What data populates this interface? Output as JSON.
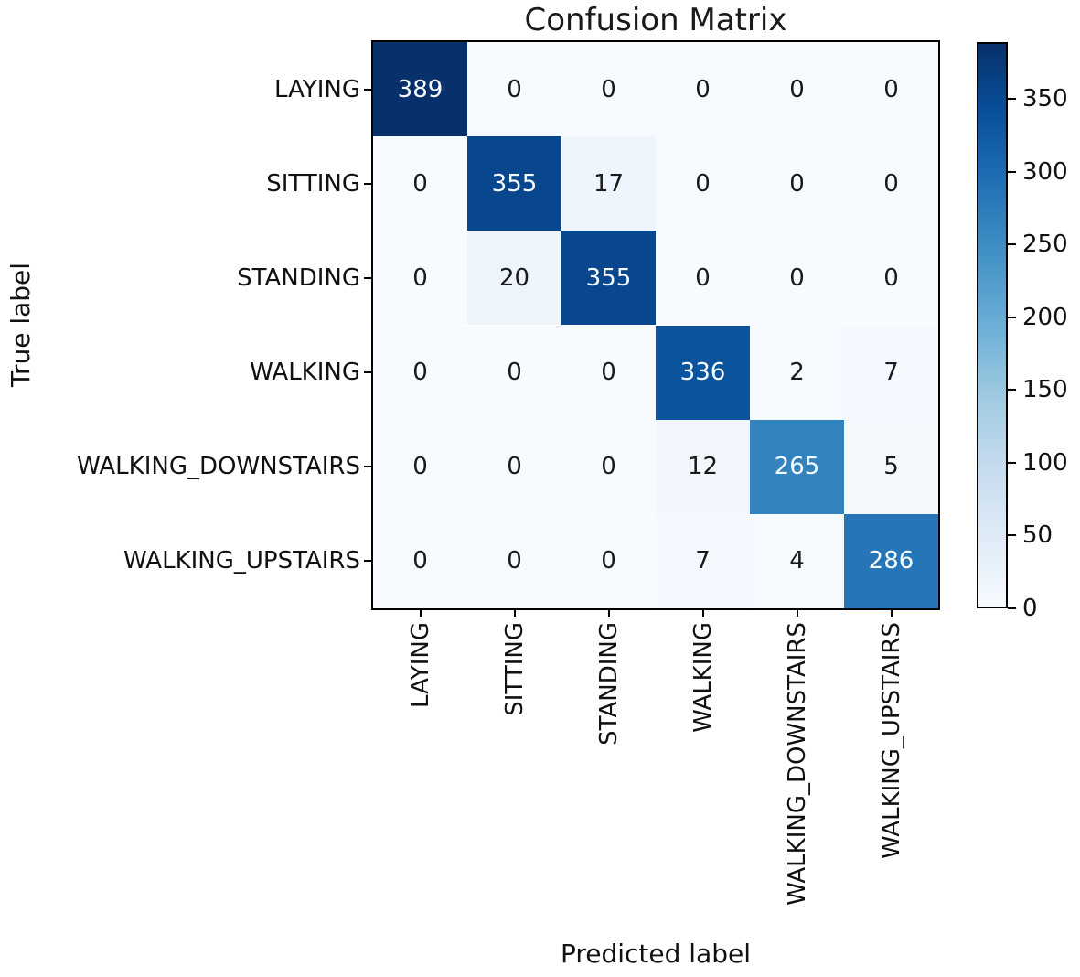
{
  "chart_data": {
    "type": "heatmap",
    "title": "Confusion Matrix",
    "xlabel": "Predicted label",
    "ylabel": "True label",
    "x_categories": [
      "LAYING",
      "SITTING",
      "STANDING",
      "WALKING",
      "WALKING_DOWNSTAIRS",
      "WALKING_UPSTAIRS"
    ],
    "y_categories": [
      "LAYING",
      "SITTING",
      "STANDING",
      "WALKING",
      "WALKING_DOWNSTAIRS",
      "WALKING_UPSTAIRS"
    ],
    "matrix": [
      [
        389,
        0,
        0,
        0,
        0,
        0
      ],
      [
        0,
        355,
        17,
        0,
        0,
        0
      ],
      [
        0,
        20,
        355,
        0,
        0,
        0
      ],
      [
        0,
        0,
        0,
        336,
        2,
        7
      ],
      [
        0,
        0,
        0,
        12,
        265,
        5
      ],
      [
        0,
        0,
        0,
        7,
        4,
        286
      ]
    ],
    "vmin": 0,
    "vmax": 389,
    "colorbar_ticks": [
      0,
      50,
      100,
      150,
      200,
      250,
      300,
      350
    ],
    "colorbar_position": "right",
    "grid": false,
    "colormap": "Blues",
    "colormap_stops": [
      "#f7fbff",
      "#deebf7",
      "#c6dbef",
      "#9ecae1",
      "#6baed6",
      "#4292c6",
      "#2171b5",
      "#08519c",
      "#08306b"
    ],
    "cell_text_color_dark": "#1a1a1a",
    "cell_text_color_light": "#f7fbff",
    "axis_color": "#000000"
  }
}
